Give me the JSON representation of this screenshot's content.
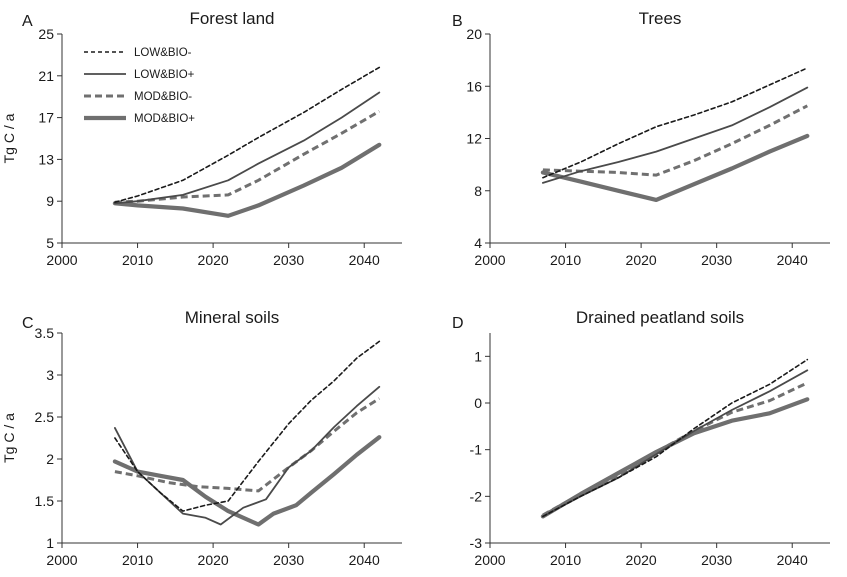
{
  "figure": {
    "background": "#ffffff"
  },
  "chart_data": [
    {
      "panel": "A",
      "type": "line",
      "title": "Forest land",
      "ylabel": "Tg C / a",
      "xlim": [
        2000,
        2045
      ],
      "ylim": [
        5,
        25
      ],
      "xticks": [
        2000,
        2010,
        2020,
        2030,
        2040
      ],
      "yticks": [
        5,
        9,
        13,
        17,
        21,
        25
      ],
      "legend": "top-left",
      "grid": false,
      "series": [
        {
          "name": "LOW&BIO-",
          "style": "dotted",
          "color": "#1a1a1a",
          "x": [
            2007,
            2010,
            2016,
            2022,
            2026,
            2032,
            2037,
            2042
          ],
          "y": [
            8.9,
            9.5,
            11.0,
            13.4,
            15.1,
            17.5,
            19.7,
            21.8
          ]
        },
        {
          "name": "LOW&BIO+",
          "style": "thin",
          "color": "#4a4a4a",
          "x": [
            2007,
            2010,
            2016,
            2022,
            2026,
            2032,
            2037,
            2042
          ],
          "y": [
            8.8,
            9.0,
            9.6,
            11.0,
            12.6,
            14.8,
            17.0,
            19.4
          ]
        },
        {
          "name": "MOD&BIO-",
          "style": "dashed",
          "color": "#707070",
          "x": [
            2007,
            2010,
            2016,
            2022,
            2026,
            2032,
            2037,
            2042
          ],
          "y": [
            8.9,
            9.0,
            9.4,
            9.6,
            11.0,
            13.5,
            15.5,
            17.6
          ]
        },
        {
          "name": "MOD&BIO+",
          "style": "thick",
          "color": "#6f6f6f",
          "x": [
            2007,
            2010,
            2016,
            2022,
            2026,
            2032,
            2037,
            2042
          ],
          "y": [
            8.8,
            8.6,
            8.3,
            7.6,
            8.6,
            10.5,
            12.2,
            14.4
          ]
        }
      ]
    },
    {
      "panel": "B",
      "type": "line",
      "title": "Trees",
      "ylabel": "",
      "xlim": [
        2000,
        2045
      ],
      "ylim": [
        4,
        20
      ],
      "xticks": [
        2000,
        2010,
        2020,
        2030,
        2040
      ],
      "yticks": [
        4,
        8,
        12,
        16,
        20
      ],
      "grid": false,
      "series": [
        {
          "name": "LOW&BIO-",
          "style": "dotted",
          "color": "#1a1a1a",
          "x": [
            2007,
            2012,
            2017,
            2022,
            2027,
            2032,
            2037,
            2042
          ],
          "y": [
            9.0,
            10.2,
            11.6,
            12.9,
            13.8,
            14.8,
            16.1,
            17.4
          ]
        },
        {
          "name": "LOW&BIO+",
          "style": "thin",
          "color": "#4a4a4a",
          "x": [
            2007,
            2012,
            2017,
            2022,
            2027,
            2032,
            2037,
            2042
          ],
          "y": [
            8.6,
            9.5,
            10.2,
            11.0,
            12.0,
            13.0,
            14.4,
            15.9
          ]
        },
        {
          "name": "MOD&BIO-",
          "style": "dashed",
          "color": "#707070",
          "x": [
            2007,
            2012,
            2017,
            2022,
            2027,
            2032,
            2037,
            2042
          ],
          "y": [
            9.6,
            9.5,
            9.4,
            9.2,
            10.3,
            11.6,
            13.0,
            14.5
          ]
        },
        {
          "name": "MOD&BIO+",
          "style": "thick",
          "color": "#6f6f6f",
          "x": [
            2007,
            2012,
            2017,
            2022,
            2027,
            2032,
            2037,
            2042
          ],
          "y": [
            9.4,
            8.7,
            8.0,
            7.3,
            8.5,
            9.7,
            11.0,
            12.2
          ]
        }
      ]
    },
    {
      "panel": "C",
      "type": "line",
      "title": "Mineral soils",
      "ylabel": "Tg C / a",
      "xlim": [
        2000,
        2045
      ],
      "ylim": [
        1,
        3.5
      ],
      "xticks": [
        2000,
        2010,
        2020,
        2030,
        2040
      ],
      "yticks": [
        1,
        1.5,
        2,
        2.5,
        3,
        3.5
      ],
      "grid": false,
      "series": [
        {
          "name": "LOW&BIO-",
          "style": "dotted",
          "color": "#1a1a1a",
          "x": [
            2007,
            2010,
            2013,
            2016,
            2019,
            2022,
            2026,
            2030,
            2033,
            2036,
            2039,
            2042
          ],
          "y": [
            2.25,
            1.85,
            1.6,
            1.38,
            1.45,
            1.5,
            1.97,
            2.42,
            2.7,
            2.93,
            3.2,
            3.4
          ]
        },
        {
          "name": "LOW&BIO+",
          "style": "thin",
          "color": "#4a4a4a",
          "x": [
            2007,
            2010,
            2013,
            2016,
            2019,
            2021,
            2024,
            2027,
            2030,
            2033,
            2036,
            2039,
            2042
          ],
          "y": [
            2.37,
            1.85,
            1.6,
            1.35,
            1.3,
            1.22,
            1.42,
            1.52,
            1.9,
            2.1,
            2.38,
            2.63,
            2.86
          ]
        },
        {
          "name": "MOD&BIO-",
          "style": "dashed",
          "color": "#707070",
          "x": [
            2007,
            2010,
            2014,
            2018,
            2022,
            2026,
            2030,
            2033,
            2036,
            2039,
            2042
          ],
          "y": [
            1.85,
            1.8,
            1.72,
            1.67,
            1.65,
            1.62,
            1.9,
            2.1,
            2.33,
            2.55,
            2.72
          ]
        },
        {
          "name": "MOD&BIO+",
          "style": "thick",
          "color": "#6f6f6f",
          "x": [
            2007,
            2010,
            2013,
            2016,
            2019,
            2022,
            2026,
            2028,
            2031,
            2033,
            2036,
            2039,
            2042
          ],
          "y": [
            1.97,
            1.85,
            1.8,
            1.75,
            1.55,
            1.38,
            1.22,
            1.35,
            1.45,
            1.6,
            1.82,
            2.05,
            2.26
          ]
        }
      ]
    },
    {
      "panel": "D",
      "type": "line",
      "title": "Drained peatland soils",
      "ylabel": "",
      "xlim": [
        2000,
        2045
      ],
      "ylim": [
        -3,
        1.5
      ],
      "xticks": [
        2000,
        2010,
        2020,
        2030,
        2040
      ],
      "yticks": [
        -3,
        -2,
        -1,
        0,
        1
      ],
      "grid": false,
      "series": [
        {
          "name": "LOW&BIO-",
          "style": "dotted",
          "color": "#1a1a1a",
          "x": [
            2007,
            2012,
            2017,
            2022,
            2027,
            2032,
            2037,
            2042
          ],
          "y": [
            -2.43,
            -2.0,
            -1.6,
            -1.15,
            -0.55,
            0.0,
            0.4,
            0.93
          ]
        },
        {
          "name": "LOW&BIO+",
          "style": "thin",
          "color": "#4a4a4a",
          "x": [
            2007,
            2012,
            2017,
            2022,
            2027,
            2032,
            2037,
            2042
          ],
          "y": [
            -2.43,
            -2.0,
            -1.6,
            -1.1,
            -0.6,
            -0.15,
            0.25,
            0.7
          ]
        },
        {
          "name": "MOD&BIO-",
          "style": "dashed",
          "color": "#707070",
          "x": [
            2007,
            2012,
            2017,
            2022,
            2027,
            2032,
            2037,
            2042
          ],
          "y": [
            -2.4,
            -1.95,
            -1.55,
            -1.05,
            -0.6,
            -0.2,
            0.05,
            0.43
          ]
        },
        {
          "name": "MOD&BIO+",
          "style": "thick",
          "color": "#6f6f6f",
          "x": [
            2007,
            2012,
            2017,
            2022,
            2027,
            2032,
            2037,
            2042
          ],
          "y": [
            -2.43,
            -1.95,
            -1.5,
            -1.05,
            -0.65,
            -0.38,
            -0.22,
            0.08
          ]
        }
      ]
    }
  ]
}
